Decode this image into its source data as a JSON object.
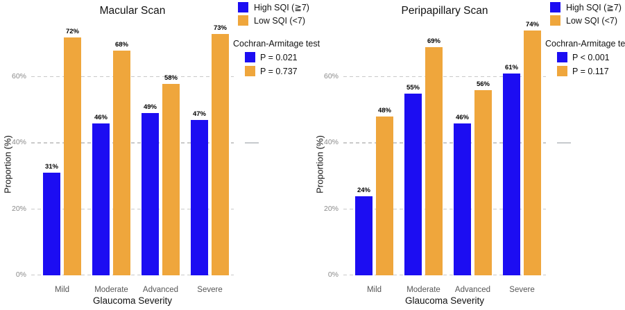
{
  "chart_data": [
    {
      "type": "bar",
      "title": "Macular Scan",
      "xlabel": "Glaucoma Severity",
      "ylabel": "Proportion (%)",
      "categories": [
        "Mild",
        "Moderate",
        "Advanced",
        "Severe"
      ],
      "series": [
        {
          "name": "High SQI (≧7)",
          "color": "#1C0DF2",
          "values": [
            31,
            46,
            49,
            47
          ]
        },
        {
          "name": "Low SQI (<7)",
          "color": "#EFA63C",
          "values": [
            72,
            68,
            58,
            73
          ]
        }
      ],
      "value_label_suffix": "%",
      "yticks": [
        0,
        20,
        40,
        60
      ],
      "ytick_labels": [
        "0%",
        "20%",
        "40%",
        "60%"
      ],
      "ylim": [
        0,
        77
      ],
      "grid": "horizontal-dashed",
      "legend_position": "top-right",
      "stat_test": {
        "title": "Cochran-Armitage test",
        "entries": [
          {
            "series": "High SQI (≧7)",
            "color": "#1C0DF2",
            "text": "P = 0.021"
          },
          {
            "series": "Low SQI (<7)",
            "color": "#EFA63C",
            "text": "P = 0.737"
          }
        ]
      }
    },
    {
      "type": "bar",
      "title": "Peripapillary Scan",
      "xlabel": "Glaucoma Severity",
      "ylabel": "Proportion (%)",
      "categories": [
        "Mild",
        "Moderate",
        "Advanced",
        "Severe"
      ],
      "series": [
        {
          "name": "High SQI (≧7)",
          "color": "#1C0DF2",
          "values": [
            24,
            55,
            46,
            61
          ]
        },
        {
          "name": "Low SQI (<7)",
          "color": "#EFA63C",
          "values": [
            48,
            69,
            56,
            74
          ]
        }
      ],
      "value_label_suffix": "%",
      "yticks": [
        0,
        20,
        40,
        60
      ],
      "ytick_labels": [
        "0%",
        "20%",
        "40%",
        "60%"
      ],
      "ylim": [
        0,
        77
      ],
      "grid": "horizontal-dashed",
      "legend_position": "top-right",
      "stat_test": {
        "title": "Cochran-Armitage test",
        "entries": [
          {
            "series": "High SQI (≧7)",
            "color": "#1C0DF2",
            "text": "P < 0.001"
          },
          {
            "series": "Low SQI (<7)",
            "color": "#EFA63C",
            "text": "P = 0.117"
          }
        ]
      }
    }
  ]
}
